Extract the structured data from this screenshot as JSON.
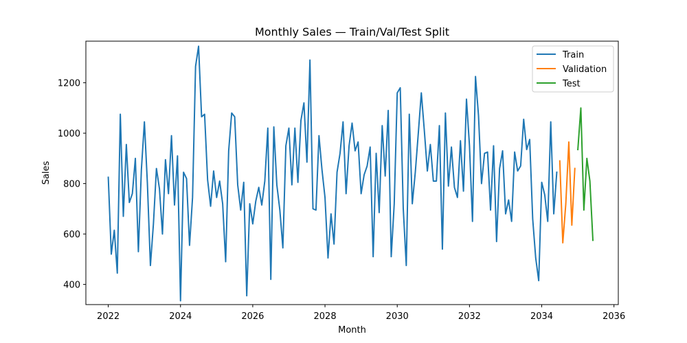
{
  "chart_data": {
    "type": "line",
    "title": "Monthly Sales — Train/Val/Test Split",
    "xlabel": "Month",
    "ylabel": "Sales",
    "xlim": [
      2021.38,
      2036.12
    ],
    "ylim": [
      320,
      1365
    ],
    "xticks": [
      "2022",
      "2024",
      "2026",
      "2028",
      "2030",
      "2032",
      "2034",
      "2036"
    ],
    "yticks": [
      400,
      600,
      800,
      1000,
      1200
    ],
    "legend_position": "top-right",
    "grid": false,
    "series": [
      {
        "name": "Train",
        "color": "#1f77b4",
        "x_start": 2022.0,
        "values": [
          825,
          520,
          615,
          445,
          1075,
          670,
          955,
          725,
          760,
          900,
          530,
          855,
          1045,
          800,
          475,
          640,
          860,
          780,
          600,
          895,
          760,
          990,
          715,
          910,
          335,
          845,
          820,
          555,
          745,
          1265,
          1345,
          1065,
          1075,
          815,
          710,
          850,
          745,
          810,
          720,
          490,
          930,
          1080,
          1065,
          795,
          695,
          805,
          355,
          720,
          640,
          730,
          785,
          715,
          810,
          1020,
          420,
          1025,
          795,
          695,
          545,
          950,
          1020,
          795,
          1020,
          805,
          1050,
          1120,
          885,
          1290,
          700,
          695,
          990,
          855,
          745,
          505,
          680,
          560,
          845,
          920,
          1045,
          760,
          950,
          1040,
          930,
          965,
          760,
          835,
          870,
          945,
          510,
          920,
          685,
          1030,
          830,
          1090,
          510,
          720,
          1160,
          1180,
          700,
          475,
          1075,
          720,
          845,
          1000,
          1160,
          1010,
          850,
          955,
          810,
          810,
          1030,
          540,
          1080,
          790,
          945,
          785,
          745,
          970,
          770,
          1135,
          950,
          650,
          1225,
          1070,
          800,
          920,
          925,
          695,
          950,
          570,
          860,
          930,
          680,
          735,
          650,
          925,
          850,
          870,
          1055,
          935,
          975,
          660,
          505,
          415,
          805,
          755,
          650,
          1045,
          680,
          845
        ]
      },
      {
        "name": "Validation",
        "color": "#ff7f0e",
        "x_start": 2034.5,
        "values": [
          890,
          565,
          720,
          965,
          635,
          860
        ]
      },
      {
        "name": "Test",
        "color": "#2ca02c",
        "x_start": 2035.0,
        "values": [
          935,
          1100,
          695,
          900,
          810,
          575
        ]
      }
    ]
  }
}
